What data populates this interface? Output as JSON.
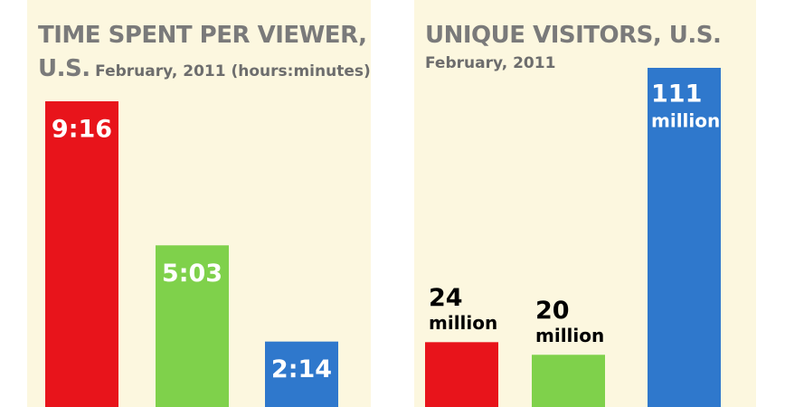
{
  "chart_data": [
    {
      "type": "bar",
      "title": "TIME SPENT PER VIEWER, U.S.",
      "subtitle": "February, 2011 (hours:minutes)",
      "values": [
        556,
        303,
        134
      ],
      "value_labels": [
        "9:16",
        "5:03",
        "2:14"
      ],
      "colors": [
        "#e8141b",
        "#7fd14b",
        "#2f78cc"
      ],
      "title_inline": true
    },
    {
      "type": "bar",
      "title": "UNIQUE VISITORS, U.S.",
      "subtitle": "February, 2011",
      "values": [
        24,
        20,
        111
      ],
      "value_labels": [
        "24",
        "20",
        "111"
      ],
      "value_unit": "million",
      "colors": [
        "#e8141b",
        "#7fd14b",
        "#2f78cc"
      ],
      "title_inline": false
    }
  ]
}
